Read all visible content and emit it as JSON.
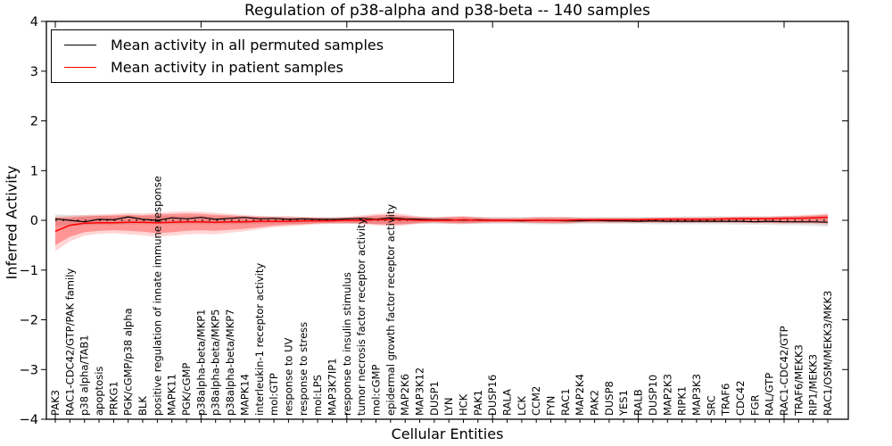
{
  "chart_data": {
    "type": "line",
    "title": "Regulation of p38-alpha and p38-beta -- 140 samples",
    "xlabel": "Cellular Entities",
    "ylabel": "Inferred Activity",
    "ylim": [
      -4,
      4
    ],
    "yticks": [
      -4,
      -3,
      -2,
      -1,
      0,
      1,
      2,
      3,
      4
    ],
    "x_major_tick_every": 10,
    "grid": false,
    "legend_position": "upper left",
    "zero_line": {
      "value": 0,
      "style": "dotted",
      "color": "#000000"
    },
    "legend": [
      {
        "label": "Mean activity in all permuted samples",
        "color": "#000000"
      },
      {
        "label": "Mean activity in patient samples",
        "color": "#ff0000"
      }
    ],
    "categories": [
      "PAK3",
      "RAC1-CDC42/GTP/PAK family",
      "p38 alpha/TAB1",
      "apoptosis",
      "PRKG1",
      "PGK/cGMP/p38 alpha",
      "BLK",
      "positive regulation of innate immune response",
      "MAPK11",
      "PGK/cGMP",
      "p38alpha-beta/MKP1",
      "p38alpha-beta/MKP5",
      "p38alpha-beta/MKP7",
      "MAPK14",
      "interleukin-1 receptor activity",
      "mol:GTP",
      "response to UV",
      "response to stress",
      "mol:LPS",
      "MAP3K7IP1",
      "response to insulin stimulus",
      "tumor necrosis factor receptor activity",
      "mol:cGMP",
      "epidermal growth factor receptor activity",
      "MAP2K6",
      "MAP3K12",
      "DUSP1",
      "LYN",
      "HCK",
      "PAK1",
      "DUSP16",
      "RALA",
      "LCK",
      "CCM2",
      "FYN",
      "RAC1",
      "MAP2K4",
      "PAK2",
      "DUSP8",
      "YES1",
      "RALB",
      "DUSP10",
      "MAP2K3",
      "RIPK1",
      "MAP3K3",
      "SRC",
      "TRAF6",
      "CDC42",
      "FGR",
      "RAL/GTP",
      "RAC1-CDC42/GTP",
      "TRAF6/MEKK3",
      "RIP1/MEKK3",
      "RAC1/OSM/MEKK3/MKK3"
    ],
    "series": [
      {
        "name": "Mean activity in all permuted samples",
        "color": "#000000",
        "width": 1.2,
        "values": [
          0.03,
          0.0,
          -0.03,
          0.02,
          0.01,
          0.07,
          0.02,
          0.0,
          0.05,
          0.03,
          0.06,
          0.02,
          0.04,
          0.06,
          0.03,
          0.04,
          0.02,
          0.03,
          0.02,
          0.02,
          0.03,
          0.04,
          0.02,
          0.05,
          0.03,
          0.02,
          0.01,
          0.01,
          0.0,
          0.01,
          0.0,
          0.0,
          -0.01,
          0.0,
          0.0,
          -0.01,
          -0.01,
          0.0,
          -0.01,
          -0.01,
          -0.02,
          -0.01,
          -0.02,
          -0.02,
          -0.02,
          -0.02,
          -0.02,
          -0.02,
          -0.03,
          -0.02,
          -0.03,
          -0.03,
          -0.03,
          -0.04
        ]
      },
      {
        "name": "Mean activity in patient samples",
        "color": "#ff0000",
        "width": 1.5,
        "values": [
          -0.22,
          -0.1,
          -0.06,
          -0.05,
          -0.05,
          -0.04,
          -0.04,
          -0.05,
          -0.04,
          -0.03,
          -0.03,
          -0.04,
          -0.03,
          -0.03,
          -0.02,
          -0.02,
          -0.02,
          -0.01,
          -0.01,
          -0.01,
          0.0,
          0.0,
          0.01,
          0.01,
          0.01,
          0.0,
          0.0,
          0.0,
          0.01,
          0.0,
          0.0,
          0.0,
          0.0,
          0.0,
          0.0,
          0.0,
          0.01,
          0.01,
          0.01,
          0.01,
          0.01,
          0.02,
          0.02,
          0.02,
          0.02,
          0.02,
          0.03,
          0.03,
          0.03,
          0.03,
          0.04,
          0.04,
          0.05,
          0.06
        ]
      }
    ],
    "bands": [
      {
        "name": "permuted-ci",
        "color": "rgba(0,0,0,0.10)",
        "lower": [
          -0.12,
          -0.11,
          -0.1,
          -0.09,
          -0.09,
          -0.08,
          -0.08,
          -0.08,
          -0.08,
          -0.08,
          -0.08,
          -0.08,
          -0.08,
          -0.08,
          -0.07,
          -0.07,
          -0.07,
          -0.07,
          -0.07,
          -0.07,
          -0.07,
          -0.07,
          -0.07,
          -0.07,
          -0.07,
          -0.07,
          -0.07,
          -0.07,
          -0.07,
          -0.07,
          -0.07,
          -0.07,
          -0.07,
          -0.08,
          -0.08,
          -0.08,
          -0.07,
          -0.07,
          -0.07,
          -0.07,
          -0.07,
          -0.08,
          -0.08,
          -0.08,
          -0.08,
          -0.08,
          -0.08,
          -0.09,
          -0.09,
          -0.09,
          -0.1,
          -0.1,
          -0.11,
          -0.13
        ],
        "upper": [
          0.12,
          0.11,
          0.1,
          0.1,
          0.09,
          0.09,
          0.09,
          0.09,
          0.09,
          0.09,
          0.09,
          0.08,
          0.08,
          0.08,
          0.08,
          0.08,
          0.08,
          0.07,
          0.07,
          0.07,
          0.07,
          0.07,
          0.07,
          0.07,
          0.07,
          0.07,
          0.07,
          0.07,
          0.07,
          0.07,
          0.07,
          0.07,
          0.07,
          0.07,
          0.07,
          0.07,
          0.07,
          0.07,
          0.07,
          0.07,
          0.07,
          0.07,
          0.07,
          0.08,
          0.08,
          0.08,
          0.08,
          0.08,
          0.08,
          0.08,
          0.09,
          0.09,
          0.1,
          0.11
        ]
      },
      {
        "name": "patient-ci-outer",
        "color": "rgba(255,0,0,0.16)",
        "lower": [
          -0.62,
          -0.42,
          -0.31,
          -0.27,
          -0.26,
          -0.28,
          -0.3,
          -0.33,
          -0.31,
          -0.28,
          -0.27,
          -0.28,
          -0.25,
          -0.22,
          -0.18,
          -0.14,
          -0.12,
          -0.1,
          -0.08,
          -0.07,
          -0.07,
          -0.08,
          -0.1,
          -0.12,
          -0.1,
          -0.07,
          -0.05,
          -0.07,
          -0.08,
          -0.06,
          -0.05,
          -0.05,
          -0.05,
          -0.06,
          -0.07,
          -0.07,
          -0.05,
          -0.05,
          -0.05,
          -0.05,
          -0.05,
          -0.05,
          -0.05,
          -0.05,
          -0.05,
          -0.05,
          -0.05,
          -0.06,
          -0.06,
          -0.06,
          -0.07,
          -0.07,
          -0.07,
          -0.09
        ],
        "upper": [
          0.08,
          0.09,
          0.11,
          0.12,
          0.13,
          0.15,
          0.14,
          0.16,
          0.17,
          0.18,
          0.17,
          0.15,
          0.13,
          0.11,
          0.09,
          0.08,
          0.08,
          0.07,
          0.06,
          0.06,
          0.07,
          0.1,
          0.13,
          0.15,
          0.12,
          0.08,
          0.06,
          0.08,
          0.09,
          0.07,
          0.05,
          0.05,
          0.05,
          0.07,
          0.07,
          0.07,
          0.05,
          0.05,
          0.05,
          0.05,
          0.05,
          0.06,
          0.06,
          0.06,
          0.06,
          0.07,
          0.07,
          0.08,
          0.08,
          0.08,
          0.09,
          0.1,
          0.12,
          0.14
        ]
      },
      {
        "name": "patient-ci-inner",
        "color": "rgba(255,0,0,0.30)",
        "lower": [
          -0.5,
          -0.33,
          -0.24,
          -0.21,
          -0.2,
          -0.21,
          -0.23,
          -0.26,
          -0.24,
          -0.21,
          -0.2,
          -0.21,
          -0.19,
          -0.17,
          -0.14,
          -0.11,
          -0.09,
          -0.08,
          -0.06,
          -0.05,
          -0.05,
          -0.06,
          -0.08,
          -0.09,
          -0.08,
          -0.05,
          -0.04,
          -0.05,
          -0.06,
          -0.05,
          -0.04,
          -0.04,
          -0.04,
          -0.05,
          -0.05,
          -0.05,
          -0.04,
          -0.04,
          -0.04,
          -0.04,
          -0.04,
          -0.04,
          -0.04,
          -0.04,
          -0.04,
          -0.04,
          -0.04,
          -0.04,
          -0.05,
          -0.05,
          -0.05,
          -0.05,
          -0.05,
          -0.06
        ],
        "upper": [
          0.05,
          0.06,
          0.08,
          0.09,
          0.1,
          0.11,
          0.1,
          0.12,
          0.13,
          0.14,
          0.13,
          0.11,
          0.1,
          0.08,
          0.07,
          0.06,
          0.06,
          0.05,
          0.05,
          0.04,
          0.05,
          0.07,
          0.1,
          0.11,
          0.09,
          0.06,
          0.05,
          0.06,
          0.07,
          0.05,
          0.04,
          0.04,
          0.04,
          0.05,
          0.05,
          0.05,
          0.04,
          0.04,
          0.04,
          0.04,
          0.04,
          0.04,
          0.05,
          0.05,
          0.05,
          0.05,
          0.05,
          0.06,
          0.06,
          0.06,
          0.07,
          0.08,
          0.09,
          0.11
        ]
      }
    ]
  }
}
